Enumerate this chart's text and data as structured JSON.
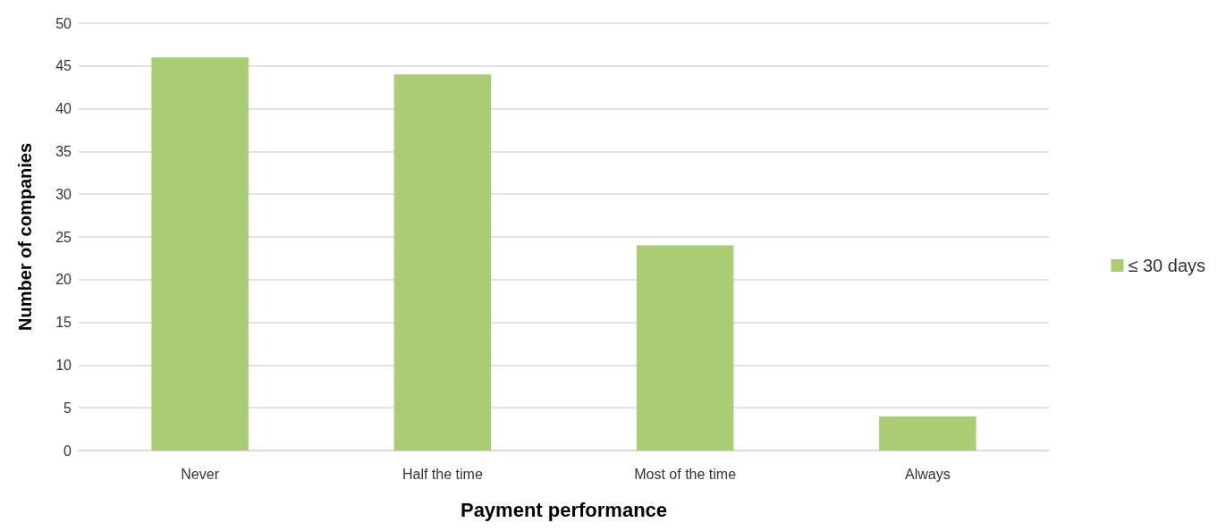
{
  "chart_data": {
    "type": "bar",
    "xlabel": "Payment performance",
    "ylabel": "Number of companies",
    "categories": [
      "Never",
      "Half the time",
      "Most of the time",
      "Always"
    ],
    "series": [
      {
        "name": "≤ 30 days",
        "color": "#a9cd73",
        "values": [
          46,
          44,
          24,
          4
        ]
      }
    ],
    "ylim": [
      0,
      50
    ],
    "yticks": [
      0,
      5,
      10,
      15,
      20,
      25,
      30,
      35,
      40,
      45,
      50
    ],
    "grid": "y",
    "legend": "right"
  }
}
